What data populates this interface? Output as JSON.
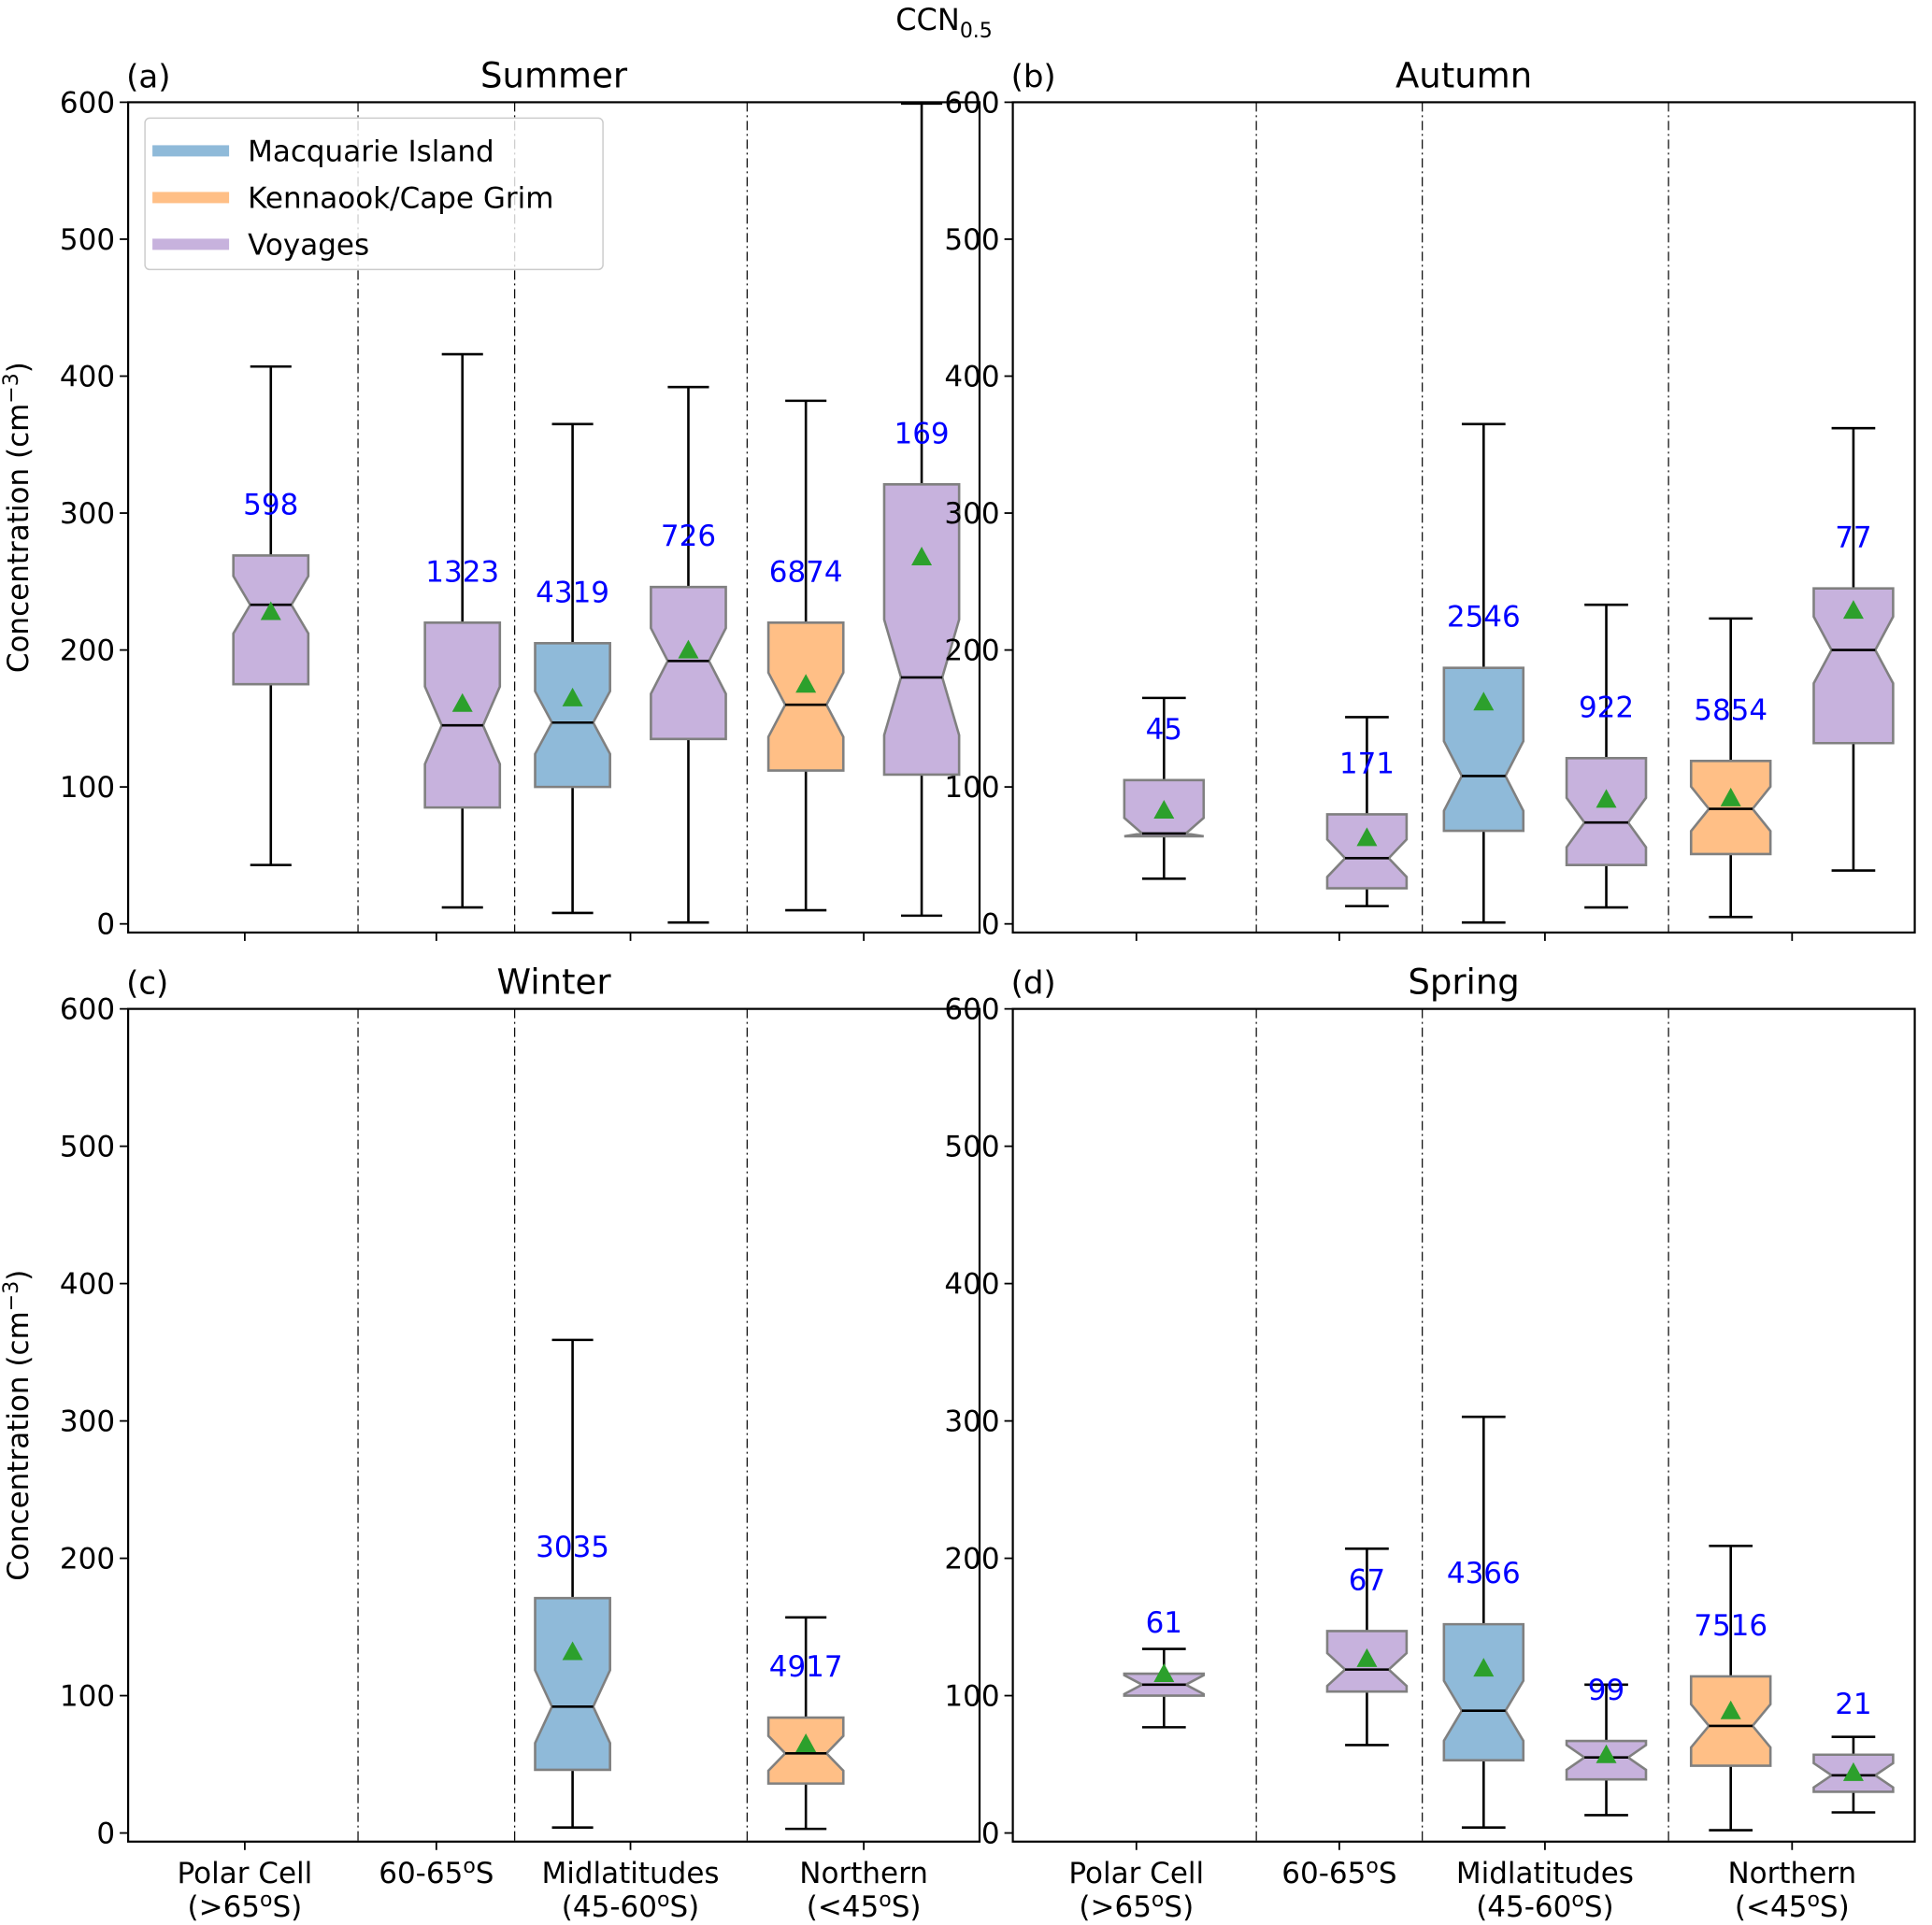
{
  "chart_data": {
    "type": "boxplot",
    "suptitle": "CCN",
    "suptitle_sub": "0.5",
    "ylabel": "Concentration (cm",
    "ylabel_sup": "−3",
    "ylabel_end": ")",
    "ylim": [
      0,
      600
    ],
    "yticks": [
      0,
      100,
      200,
      300,
      400,
      500,
      600
    ],
    "region_labels": [
      {
        "line1": "Polar Cell",
        "line2": "(>65°S)",
        "line1_pre": "Polar Cell",
        "line2_pre": "(>65",
        "line2_sup": "o",
        "line2_post": "S)"
      },
      {
        "line1_pre": "60-65",
        "line1_sup": "o",
        "line1_post": "S",
        "line2_pre": "",
        "line2_sup": "",
        "line2_post": ""
      },
      {
        "line1_pre": "Midlatitudes",
        "line2_pre": "(45-60",
        "line2_sup": "o",
        "line2_post": "S)"
      },
      {
        "line1_pre": "Northern",
        "line2_pre": "(<45",
        "line2_sup": "o",
        "line2_post": "S)"
      }
    ],
    "legend": {
      "position": "upper-left of panel (a)",
      "entries": [
        {
          "name": "Macquarie Island",
          "color": "#8fbad9"
        },
        {
          "name": "Kennaook/Cape Grim",
          "color": "#ffbf86"
        },
        {
          "name": "Voyages",
          "color": "#c7b2dd"
        }
      ]
    },
    "colors": {
      "box_edge": "#808080",
      "mean_marker": "#2ca02c",
      "count_text": "#0000ff",
      "axis": "#000000"
    },
    "panels": [
      {
        "label": "(a)",
        "title": "Summer",
        "boxes": [
          {
            "region": 0,
            "source": "Voyages",
            "whislo": 43,
            "q1": 175,
            "med": 233,
            "q3": 269,
            "whishi": 407,
            "mean": 228,
            "n": "598"
          },
          {
            "region": 1,
            "source": "Voyages",
            "whislo": 12,
            "q1": 85,
            "med": 145,
            "q3": 220,
            "whishi": 416,
            "mean": 161,
            "n": "1323"
          },
          {
            "region": 2,
            "source": "Macquarie Island",
            "whislo": 8,
            "q1": 100,
            "med": 147,
            "q3": 205,
            "whishi": 365,
            "mean": 165,
            "n": "4319"
          },
          {
            "region": 2,
            "source": "Voyages",
            "whislo": 1,
            "q1": 135,
            "med": 192,
            "q3": 246,
            "whishi": 392,
            "mean": 200,
            "n": "726"
          },
          {
            "region": 3,
            "source": "Kennaook/Cape Grim",
            "whislo": 10,
            "q1": 112,
            "med": 160,
            "q3": 220,
            "whishi": 382,
            "mean": 175,
            "n": "6874"
          },
          {
            "region": 3,
            "source": "Voyages",
            "whislo": 6,
            "q1": 109,
            "med": 180,
            "q3": 321,
            "whishi": 599,
            "mean": 268,
            "n": "169"
          }
        ]
      },
      {
        "label": "(b)",
        "title": "Autumn",
        "boxes": [
          {
            "region": 0,
            "source": "Voyages",
            "whislo": 33,
            "q1": 64,
            "med": 66,
            "q3": 105,
            "whishi": 165,
            "mean": 83,
            "n": "45"
          },
          {
            "region": 1,
            "source": "Voyages",
            "whislo": 13,
            "q1": 26,
            "med": 48,
            "q3": 80,
            "whishi": 151,
            "mean": 63,
            "n": "171"
          },
          {
            "region": 2,
            "source": "Macquarie Island",
            "whislo": 1,
            "q1": 68,
            "med": 108,
            "q3": 187,
            "whishi": 365,
            "mean": 162,
            "n": "2546"
          },
          {
            "region": 2,
            "source": "Voyages",
            "whislo": 12,
            "q1": 43,
            "med": 74,
            "q3": 121,
            "whishi": 233,
            "mean": 91,
            "n": "922"
          },
          {
            "region": 3,
            "source": "Kennaook/Cape Grim",
            "whislo": 5,
            "q1": 51,
            "med": 84,
            "q3": 119,
            "whishi": 223,
            "mean": 92,
            "n": "5854"
          },
          {
            "region": 3,
            "source": "Voyages",
            "whislo": 39,
            "q1": 132,
            "med": 200,
            "q3": 245,
            "whishi": 362,
            "mean": 229,
            "n": "77"
          }
        ]
      },
      {
        "label": "(c)",
        "title": "Winter",
        "boxes": [
          {
            "region": 2,
            "source": "Macquarie Island",
            "whislo": 4,
            "q1": 46,
            "med": 92,
            "q3": 171,
            "whishi": 359,
            "mean": 132,
            "n": "3035"
          },
          {
            "region": 3,
            "source": "Kennaook/Cape Grim",
            "whislo": 3,
            "q1": 36,
            "med": 58,
            "q3": 84,
            "whishi": 157,
            "mean": 65,
            "n": "4917"
          }
        ]
      },
      {
        "label": "(d)",
        "title": "Spring",
        "boxes": [
          {
            "region": 0,
            "source": "Voyages",
            "whislo": 77,
            "q1": 100,
            "med": 108,
            "q3": 116,
            "whishi": 134,
            "mean": 116,
            "n": "61"
          },
          {
            "region": 1,
            "source": "Voyages",
            "whislo": 64,
            "q1": 103,
            "med": 119,
            "q3": 147,
            "whishi": 207,
            "mean": 127,
            "n": "67"
          },
          {
            "region": 2,
            "source": "Macquarie Island",
            "whislo": 4,
            "q1": 53,
            "med": 89,
            "q3": 152,
            "whishi": 303,
            "mean": 120,
            "n": "4366"
          },
          {
            "region": 2,
            "source": "Voyages",
            "whislo": 13,
            "q1": 39,
            "med": 55,
            "q3": 67,
            "whishi": 108,
            "mean": 57,
            "n": "99"
          },
          {
            "region": 3,
            "source": "Kennaook/Cape Grim",
            "whislo": 2,
            "q1": 49,
            "med": 78,
            "q3": 114,
            "whishi": 209,
            "mean": 89,
            "n": "7516"
          },
          {
            "region": 3,
            "source": "Voyages",
            "whislo": 15,
            "q1": 30,
            "med": 42,
            "q3": 57,
            "whishi": 70,
            "mean": 44,
            "n": "21"
          }
        ]
      }
    ]
  }
}
